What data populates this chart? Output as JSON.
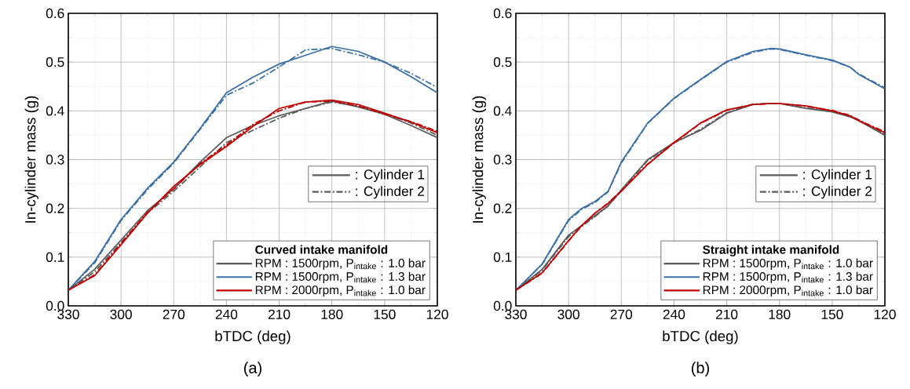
{
  "chart_data": [
    {
      "type": "line",
      "title": "(a)",
      "xlabel": "bTDC (deg)",
      "ylabel": "In-cylinder mass (g)",
      "legend_title": "Curved intake manifold",
      "legend": "bottom right",
      "grid": true,
      "xlim": [
        330,
        120
      ],
      "xticks": [
        330,
        300,
        270,
        240,
        210,
        180,
        150,
        120
      ],
      "ylim": [
        0,
        0.6
      ],
      "yticks": [
        {
          "value": 0,
          "label": "0.0"
        },
        0.1,
        0.2,
        0.3,
        0.4,
        0.5,
        0.6
      ],
      "annotations": [
        ": Cylinder 1",
        ": Cylinder 2"
      ],
      "x": [
        330,
        315,
        300,
        285,
        270,
        255,
        240,
        225,
        210,
        195,
        180,
        165,
        150,
        135,
        120
      ],
      "series": [
        {
          "name": "RPM : 1500rpm, P$_{intake}$ : 1.0 bar",
          "color": "#5a5a5a",
          "line_style": "solid",
          "values": [
            0.032,
            0.075,
            0.135,
            0.195,
            0.24,
            0.295,
            0.345,
            0.37,
            0.39,
            0.405,
            0.42,
            0.408,
            0.393,
            0.37,
            0.345
          ]
        },
        {
          "color": "#5a5a5a",
          "line_style": "dashdot",
          "values": [
            0.032,
            0.07,
            0.13,
            0.19,
            0.235,
            0.285,
            0.335,
            0.36,
            0.385,
            0.405,
            0.418,
            0.41,
            0.395,
            0.375,
            0.35
          ]
        },
        {
          "name": "RPM : 1500rpm, P$_{intake}$ : 1.3 bar",
          "color": "#3a6ea5",
          "line_style": "solid",
          "values": [
            0.032,
            0.091,
            0.177,
            0.241,
            0.295,
            0.364,
            0.437,
            0.469,
            0.496,
            0.514,
            0.532,
            0.522,
            0.5,
            0.47,
            0.437
          ]
        },
        {
          "color": "#3a6ea5",
          "line_style": "dashdot",
          "values": [
            0.032,
            0.088,
            0.175,
            0.238,
            0.293,
            0.362,
            0.432,
            0.457,
            0.49,
            0.525,
            0.528,
            0.515,
            0.5,
            0.477,
            0.448
          ]
        },
        {
          "name": "RPM : 2000rpm, P$_{intake}$ : 1.0 bar",
          "color": "#c00000",
          "line_style": "solid",
          "values": [
            0.032,
            0.062,
            0.125,
            0.19,
            0.245,
            0.29,
            0.327,
            0.368,
            0.405,
            0.418,
            0.422,
            0.413,
            0.395,
            0.377,
            0.355
          ]
        },
        {
          "color": "#c00000",
          "line_style": "dashdot",
          "values": [
            0.032,
            0.064,
            0.128,
            0.192,
            0.24,
            0.292,
            0.33,
            0.372,
            0.4,
            0.418,
            0.42,
            0.41,
            0.393,
            0.378,
            0.358
          ]
        }
      ]
    },
    {
      "type": "line",
      "title": "(b)",
      "xlabel": "bTDC (deg)",
      "ylabel": "In-cylinder mass (g)",
      "legend_title": "Straight intake manifold",
      "legend": "bottom right",
      "grid": true,
      "xlim": [
        330,
        120
      ],
      "xticks": [
        330,
        300,
        270,
        240,
        210,
        180,
        150,
        120
      ],
      "ylim": [
        0,
        0.6
      ],
      "yticks": [
        {
          "value": 0,
          "label": "0.0"
        },
        0.1,
        0.2,
        0.3,
        0.4,
        0.5,
        0.6
      ],
      "annotations": [
        ": Cylinder 1",
        ": Cylinder 2"
      ],
      "x": [
        330,
        315,
        300,
        292.5,
        285,
        277.5,
        270,
        255,
        240,
        225,
        210,
        195,
        185,
        180,
        165,
        150,
        140,
        135,
        120
      ],
      "series": [
        {
          "name": "RPM : 1500rpm, P$_{intake}$ : 1.0 bar",
          "color": "#5a5a5a",
          "line_style": "solid",
          "values": [
            0.032,
            0.075,
            0.145,
            0.165,
            0.185,
            0.205,
            0.238,
            0.3,
            0.335,
            0.36,
            0.395,
            0.413,
            0.415,
            0.415,
            0.405,
            0.398,
            0.388,
            0.38,
            0.35
          ]
        },
        {
          "color": "#5a5a5a",
          "line_style": "dashdot",
          "values": [
            0.032,
            0.073,
            0.142,
            0.163,
            0.183,
            0.205,
            0.236,
            0.298,
            0.334,
            0.362,
            0.396,
            0.414,
            0.415,
            0.415,
            0.406,
            0.399,
            0.39,
            0.382,
            0.352
          ]
        },
        {
          "name": "RPM : 1500rpm, P$_{intake}$ : 1.3 bar",
          "color": "#3a6ea5",
          "line_style": "solid",
          "values": [
            0.032,
            0.086,
            0.177,
            0.2,
            0.214,
            0.235,
            0.295,
            0.375,
            0.426,
            0.464,
            0.501,
            0.522,
            0.528,
            0.527,
            0.515,
            0.504,
            0.49,
            0.475,
            0.445
          ]
        },
        {
          "color": "#3a6ea5",
          "line_style": "dashdot",
          "values": [
            0.032,
            0.085,
            0.175,
            0.198,
            0.212,
            0.234,
            0.293,
            0.374,
            0.425,
            0.463,
            0.5,
            0.52,
            0.527,
            0.526,
            0.514,
            0.503,
            0.49,
            0.476,
            0.447
          ]
        },
        {
          "name": "RPM : 2000rpm, P$_{intake}$ : 1.0 bar",
          "color": "#c00000",
          "line_style": "solid",
          "values": [
            0.032,
            0.068,
            0.134,
            0.165,
            0.19,
            0.21,
            0.235,
            0.29,
            0.335,
            0.375,
            0.402,
            0.413,
            0.415,
            0.415,
            0.41,
            0.4,
            0.39,
            0.38,
            0.355
          ]
        },
        {
          "color": "#c00000",
          "line_style": "dashdot",
          "values": [
            0.032,
            0.067,
            0.133,
            0.164,
            0.19,
            0.211,
            0.236,
            0.291,
            0.334,
            0.374,
            0.401,
            0.413,
            0.415,
            0.415,
            0.41,
            0.401,
            0.391,
            0.381,
            0.357
          ]
        }
      ]
    }
  ]
}
